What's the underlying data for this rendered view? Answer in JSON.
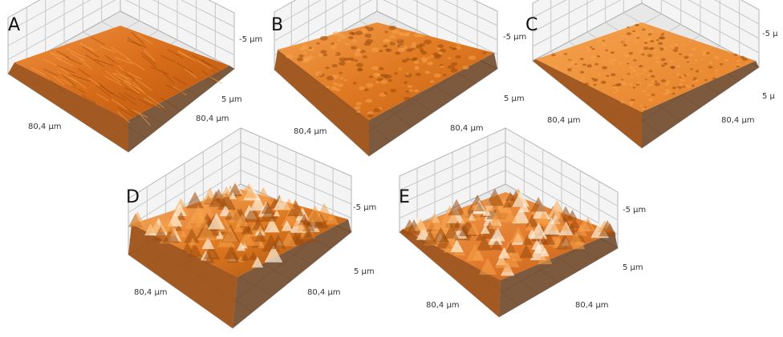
{
  "figure": {
    "panels": [
      {
        "letter": "A",
        "z_top_label": "-5 µm",
        "z_mid_label": "5 µm",
        "x_label": "80,4 µm",
        "y_label": "80,4 µm",
        "texture": "fine-ridged"
      },
      {
        "letter": "B",
        "z_top_label": "-5 µm",
        "z_mid_label": "5 µm",
        "x_label": "80,4 µm",
        "y_label": "80,4 µm",
        "texture": "rough-spiky"
      },
      {
        "letter": "C",
        "z_top_label": "-5 µ",
        "z_mid_label": "5 µ",
        "x_label": "80,4 µm",
        "y_label": "80,4 µm",
        "texture": "fine-granular"
      },
      {
        "letter": "D",
        "z_top_label": "-5 µm",
        "z_mid_label": "5 µm",
        "x_label": "80,4 µm",
        "y_label": "80,4 µm",
        "texture": "very-rough-peaks"
      },
      {
        "letter": "E",
        "z_top_label": "-5 µm",
        "z_mid_label": "5 µm",
        "x_label": "80,4 µm",
        "y_label": "80,4 µm",
        "texture": "rounded-hills"
      }
    ],
    "colors": {
      "surface_light": "#f7a24a",
      "surface_mid": "#e0761a",
      "surface_dark": "#9a4a0c",
      "surface_shadow": "#5a2a06",
      "highlight": "#fff1dc",
      "wall": "#f4f4f4",
      "grid": "#c8c8c8"
    }
  }
}
